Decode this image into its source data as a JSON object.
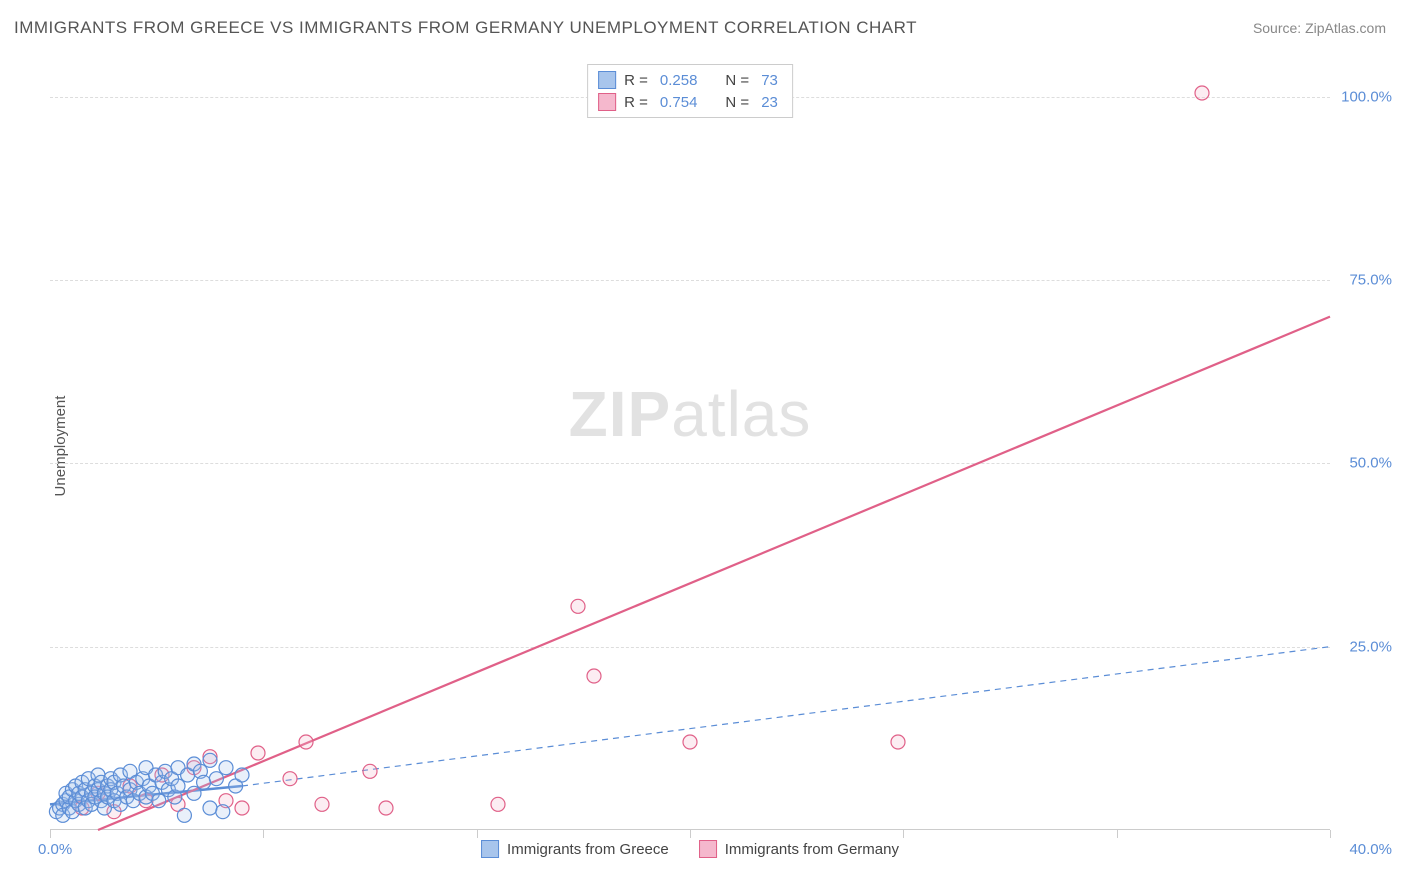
{
  "title": "IMMIGRANTS FROM GREECE VS IMMIGRANTS FROM GERMANY UNEMPLOYMENT CORRELATION CHART",
  "source_label": "Source: ZipAtlas.com",
  "y_axis_label": "Unemployment",
  "watermark_bold": "ZIP",
  "watermark_rest": "atlas",
  "chart": {
    "type": "scatter",
    "background_color": "#ffffff",
    "grid_color": "#dddddd",
    "axis_color": "#cccccc",
    "tick_label_color": "#5b8dd6",
    "text_color": "#555555",
    "xlim": [
      0,
      40
    ],
    "ylim": [
      0,
      105
    ],
    "y_ticks": [
      25,
      50,
      75,
      100
    ],
    "y_tick_labels": [
      "25.0%",
      "50.0%",
      "75.0%",
      "100.0%"
    ],
    "x_ticks": [
      0,
      6.67,
      13.33,
      20,
      26.67,
      33.33,
      40
    ],
    "x_origin_label": "0.0%",
    "x_max_label": "40.0%",
    "marker_radius": 7,
    "marker_stroke_width": 1.2,
    "marker_fill_opacity": 0.25
  },
  "series": [
    {
      "key": "greece",
      "label": "Immigrants from Greece",
      "color_stroke": "#5b8dd6",
      "color_fill": "#a8c5ec",
      "R_label": "R =",
      "R_value": "0.258",
      "N_label": "N =",
      "N_value": "73",
      "trend": {
        "x1": 0,
        "y1": 3.5,
        "x2": 6,
        "y2": 6.0,
        "style": "solid",
        "width": 2.5,
        "extend_x2": 40,
        "extend_y2": 25,
        "extend_style": "dashed",
        "extend_width": 1.2
      },
      "points": [
        [
          0.2,
          2.5
        ],
        [
          0.3,
          3.0
        ],
        [
          0.4,
          3.5
        ],
        [
          0.4,
          2.0
        ],
        [
          0.5,
          4.0
        ],
        [
          0.5,
          5.0
        ],
        [
          0.6,
          3.0
        ],
        [
          0.6,
          4.5
        ],
        [
          0.7,
          5.5
        ],
        [
          0.7,
          2.5
        ],
        [
          0.8,
          4.0
        ],
        [
          0.8,
          6.0
        ],
        [
          0.9,
          3.5
        ],
        [
          0.9,
          5.0
        ],
        [
          1.0,
          4.5
        ],
        [
          1.0,
          6.5
        ],
        [
          1.1,
          3.0
        ],
        [
          1.1,
          5.5
        ],
        [
          1.2,
          4.0
        ],
        [
          1.2,
          7.0
        ],
        [
          1.3,
          5.0
        ],
        [
          1.3,
          3.5
        ],
        [
          1.4,
          6.0
        ],
        [
          1.4,
          4.5
        ],
        [
          1.5,
          5.5
        ],
        [
          1.5,
          7.5
        ],
        [
          1.6,
          4.0
        ],
        [
          1.6,
          6.5
        ],
        [
          1.7,
          5.0
        ],
        [
          1.7,
          3.0
        ],
        [
          1.8,
          6.0
        ],
        [
          1.8,
          4.5
        ],
        [
          1.9,
          7.0
        ],
        [
          1.9,
          5.5
        ],
        [
          2.0,
          4.0
        ],
        [
          2.0,
          6.5
        ],
        [
          2.1,
          5.0
        ],
        [
          2.2,
          7.5
        ],
        [
          2.2,
          3.5
        ],
        [
          2.3,
          6.0
        ],
        [
          2.4,
          4.5
        ],
        [
          2.5,
          5.5
        ],
        [
          2.5,
          8.0
        ],
        [
          2.6,
          4.0
        ],
        [
          2.7,
          6.5
        ],
        [
          2.8,
          5.0
        ],
        [
          2.9,
          7.0
        ],
        [
          3.0,
          4.5
        ],
        [
          3.0,
          8.5
        ],
        [
          3.1,
          6.0
        ],
        [
          3.2,
          5.0
        ],
        [
          3.3,
          7.5
        ],
        [
          3.4,
          4.0
        ],
        [
          3.5,
          6.5
        ],
        [
          3.6,
          8.0
        ],
        [
          3.7,
          5.5
        ],
        [
          3.8,
          7.0
        ],
        [
          3.9,
          4.5
        ],
        [
          4.0,
          8.5
        ],
        [
          4.0,
          6.0
        ],
        [
          4.2,
          2.0
        ],
        [
          4.3,
          7.5
        ],
        [
          4.5,
          9.0
        ],
        [
          4.5,
          5.0
        ],
        [
          4.7,
          8.0
        ],
        [
          4.8,
          6.5
        ],
        [
          5.0,
          9.5
        ],
        [
          5.0,
          3.0
        ],
        [
          5.2,
          7.0
        ],
        [
          5.4,
          2.5
        ],
        [
          5.5,
          8.5
        ],
        [
          5.8,
          6.0
        ],
        [
          6.0,
          7.5
        ]
      ]
    },
    {
      "key": "germany",
      "label": "Immigrants from Germany",
      "color_stroke": "#e06088",
      "color_fill": "#f5b8cd",
      "R_label": "R =",
      "R_value": "0.754",
      "N_label": "N =",
      "N_value": "23",
      "trend": {
        "x1": 1.5,
        "y1": 0,
        "x2": 40,
        "y2": 70,
        "style": "solid",
        "width": 2.2
      },
      "points": [
        [
          1.0,
          3.0
        ],
        [
          1.5,
          5.0
        ],
        [
          2.0,
          2.5
        ],
        [
          2.5,
          6.0
        ],
        [
          3.0,
          4.0
        ],
        [
          3.5,
          7.5
        ],
        [
          4.0,
          3.5
        ],
        [
          4.5,
          8.5
        ],
        [
          5.0,
          10.0
        ],
        [
          5.5,
          4.0
        ],
        [
          6.0,
          3.0
        ],
        [
          6.5,
          10.5
        ],
        [
          7.5,
          7.0
        ],
        [
          8.0,
          12.0
        ],
        [
          8.5,
          3.5
        ],
        [
          10.0,
          8.0
        ],
        [
          10.5,
          3.0
        ],
        [
          14.0,
          3.5
        ],
        [
          16.5,
          30.5
        ],
        [
          17.0,
          21.0
        ],
        [
          20.0,
          12.0
        ],
        [
          26.5,
          12.0
        ],
        [
          36.0,
          100.5
        ]
      ]
    }
  ],
  "legend_bottom": [
    {
      "label": "Immigrants from Greece",
      "swatch_fill": "#a8c5ec",
      "swatch_stroke": "#5b8dd6"
    },
    {
      "label": "Immigrants from Germany",
      "swatch_fill": "#f5b8cd",
      "swatch_stroke": "#e06088"
    }
  ]
}
